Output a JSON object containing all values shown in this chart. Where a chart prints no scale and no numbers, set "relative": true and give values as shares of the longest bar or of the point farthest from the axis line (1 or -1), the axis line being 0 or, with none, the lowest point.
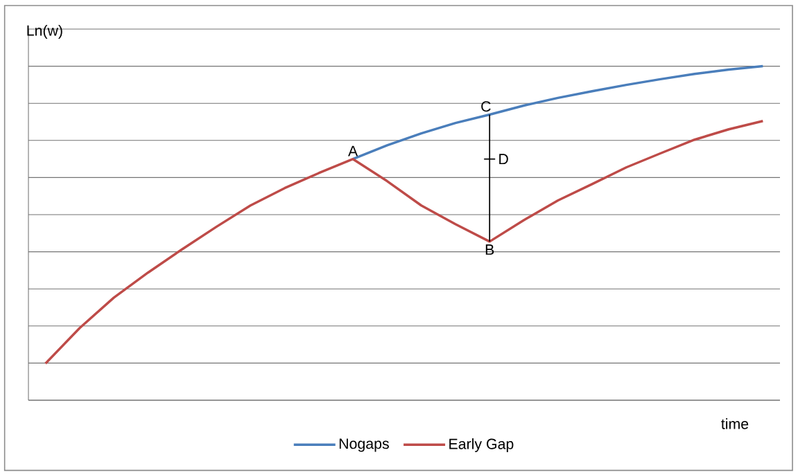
{
  "chart_data": {
    "type": "line",
    "xlabel": "time",
    "ylabel": "Ln(w)",
    "relative": true,
    "grid": "y",
    "legend": "bottom",
    "categories": [
      null,
      null,
      null,
      null,
      null,
      null,
      null,
      null,
      null,
      null,
      null,
      null,
      null,
      null,
      null,
      null,
      null,
      null,
      null,
      null,
      null,
      null
    ],
    "series": [
      {
        "name": "Nogaps",
        "color": "#4a7ebb",
        "values": [
          null,
          null,
          null,
          null,
          null,
          null,
          null,
          null,
          null,
          0.722,
          0.763,
          0.799,
          0.83,
          0.855,
          0.882,
          0.905,
          0.925,
          0.944,
          0.961,
          0.977,
          0.99,
          1.0
        ]
      },
      {
        "name": "Early Gap",
        "color": "#be4b48",
        "values": [
          0.11,
          0.216,
          0.307,
          0.382,
          0.452,
          0.519,
          0.583,
          0.635,
          0.68,
          0.722,
          0.656,
          0.583,
          0.527,
          0.475,
          0.539,
          0.598,
          0.647,
          0.697,
          0.739,
          0.78,
          0.811,
          0.836
        ]
      }
    ],
    "annotations": [
      "A",
      "B",
      "C",
      "D"
    ]
  }
}
